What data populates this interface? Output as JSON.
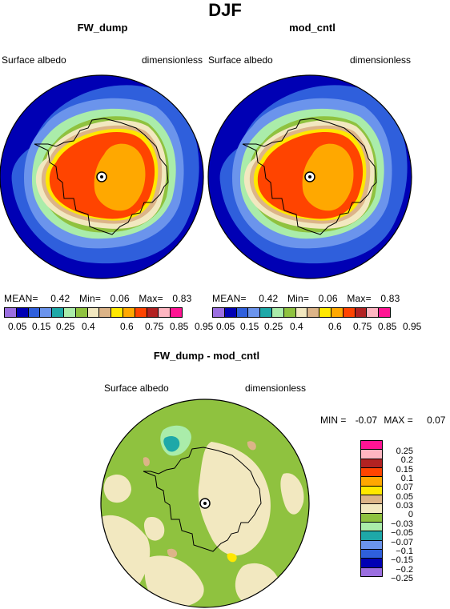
{
  "season": "DJF",
  "panels": [
    {
      "title": "FW_dump",
      "left_label": "Surface albedo",
      "right_label": "dimensionless",
      "stats": {
        "mean_label": "MEAN=",
        "mean": "0.42",
        "min_label": "Min=",
        "min": "0.06",
        "max_label": "Max=",
        "max": "0.83"
      }
    },
    {
      "title": "mod_cntl",
      "left_label": "Surface albedo",
      "right_label": "dimensionless",
      "stats": {
        "mean_label": "MEAN=",
        "mean": "0.42",
        "min_label": "Min=",
        "min": "0.06",
        "max_label": "Max=",
        "max": "0.83"
      }
    }
  ],
  "colorbar_abs": {
    "colors": [
      "#9b6fe0",
      "#0000b4",
      "#2f5fdc",
      "#6b94ec",
      "#1ea8a8",
      "#aaecaa",
      "#8fc23f",
      "#f2e8c0",
      "#dcb488",
      "#ffe800",
      "#ffa800",
      "#ff4400",
      "#b22222",
      "#ffb6c1",
      "#ff1493"
    ],
    "tick_labels": [
      "0.05",
      "0.15",
      "0.25",
      "0.4",
      "0.6",
      "0.75",
      "0.85",
      "0.95"
    ]
  },
  "diff_panel": {
    "title": "FW_dump - mod_cntl",
    "left_label": "Surface albedo",
    "right_label": "dimensionless",
    "min_label": "MIN =",
    "min": "-0.07",
    "max_label": "MAX =",
    "max": "0.07"
  },
  "colorbar_diff": {
    "colors": [
      "#ff1493",
      "#ffb6c1",
      "#b22222",
      "#ff4400",
      "#ffa800",
      "#ffe800",
      "#dcb488",
      "#f2e8c0",
      "#8fc23f",
      "#aaecaa",
      "#1ea8a8",
      "#6b94ec",
      "#2f5fdc",
      "#0000b4",
      "#9b6fe0"
    ],
    "tick_labels": [
      "0.25",
      "0.2",
      "0.15",
      "0.1",
      "0.07",
      "0.05",
      "0.03",
      "0",
      "−0.03",
      "−0.05",
      "−0.07",
      "−0.1",
      "−0.15",
      "−0.2",
      "−0.25"
    ]
  }
}
